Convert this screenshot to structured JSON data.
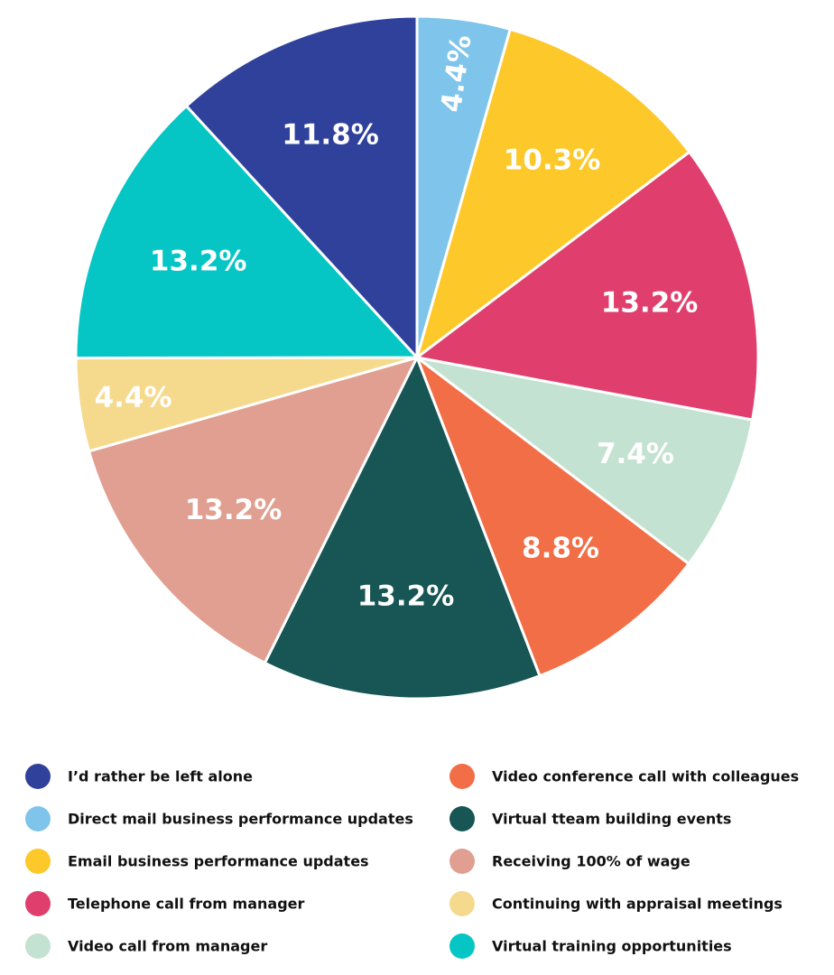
{
  "chart_data": {
    "type": "pie",
    "title": "",
    "start_angle_deg": 0,
    "direction": "clockwise",
    "slices": [
      {
        "label": "Direct mail business performance updates",
        "value": 4.4,
        "display": "4.4%",
        "color": "#7FC4EB"
      },
      {
        "label": "Email business performance updates",
        "value": 10.3,
        "display": "10.3%",
        "color": "#FDC82A"
      },
      {
        "label": "Telephone call from manager",
        "value": 13.2,
        "display": "13.2%",
        "color": "#E03F6E"
      },
      {
        "label": "Video call from manager",
        "value": 7.4,
        "display": "7.4%",
        "color": "#C4E2D1"
      },
      {
        "label": "Video conference call with colleagues",
        "value": 8.8,
        "display": "8.8%",
        "color": "#F26E47"
      },
      {
        "label": "Virtual tteam building events",
        "value": 13.2,
        "display": "13.2%",
        "color": "#185555"
      },
      {
        "label": "Receiving 100% of wage",
        "value": 13.2,
        "display": "13.2%",
        "color": "#E09F90"
      },
      {
        "label": "Continuing with appraisal meetings",
        "value": 4.4,
        "display": "4.4%",
        "color": "#F5D98C"
      },
      {
        "label": "Virtual training opportunities",
        "value": 13.2,
        "display": "13.2%",
        "color": "#05C6C5"
      },
      {
        "label": "I'd rather be left alone",
        "value": 11.8,
        "display": "11.8%",
        "color": "#2F419B"
      }
    ],
    "legend": {
      "placement": "bottom",
      "columns": [
        [
          {
            "label": "I’d rather be left alone",
            "color": "#2F419B"
          },
          {
            "label": "Direct mail business performance updates",
            "color": "#7FC4EB"
          },
          {
            "label": "Email business performance updates",
            "color": "#FDC82A"
          },
          {
            "label": "Telephone call from manager",
            "color": "#E03F6E"
          },
          {
            "label": "Video call from manager",
            "color": "#C4E2D1"
          }
        ],
        [
          {
            "label": "Video conference call with colleagues",
            "color": "#F26E47"
          },
          {
            "label": "Virtual tteam building events",
            "color": "#185555"
          },
          {
            "label": "Receiving 100% of wage",
            "color": "#E09F90"
          },
          {
            "label": "Continuing with appraisal meetings",
            "color": "#F5D98C"
          },
          {
            "label": "Virtual training opportunities",
            "color": "#05C6C5"
          }
        ]
      ]
    }
  }
}
